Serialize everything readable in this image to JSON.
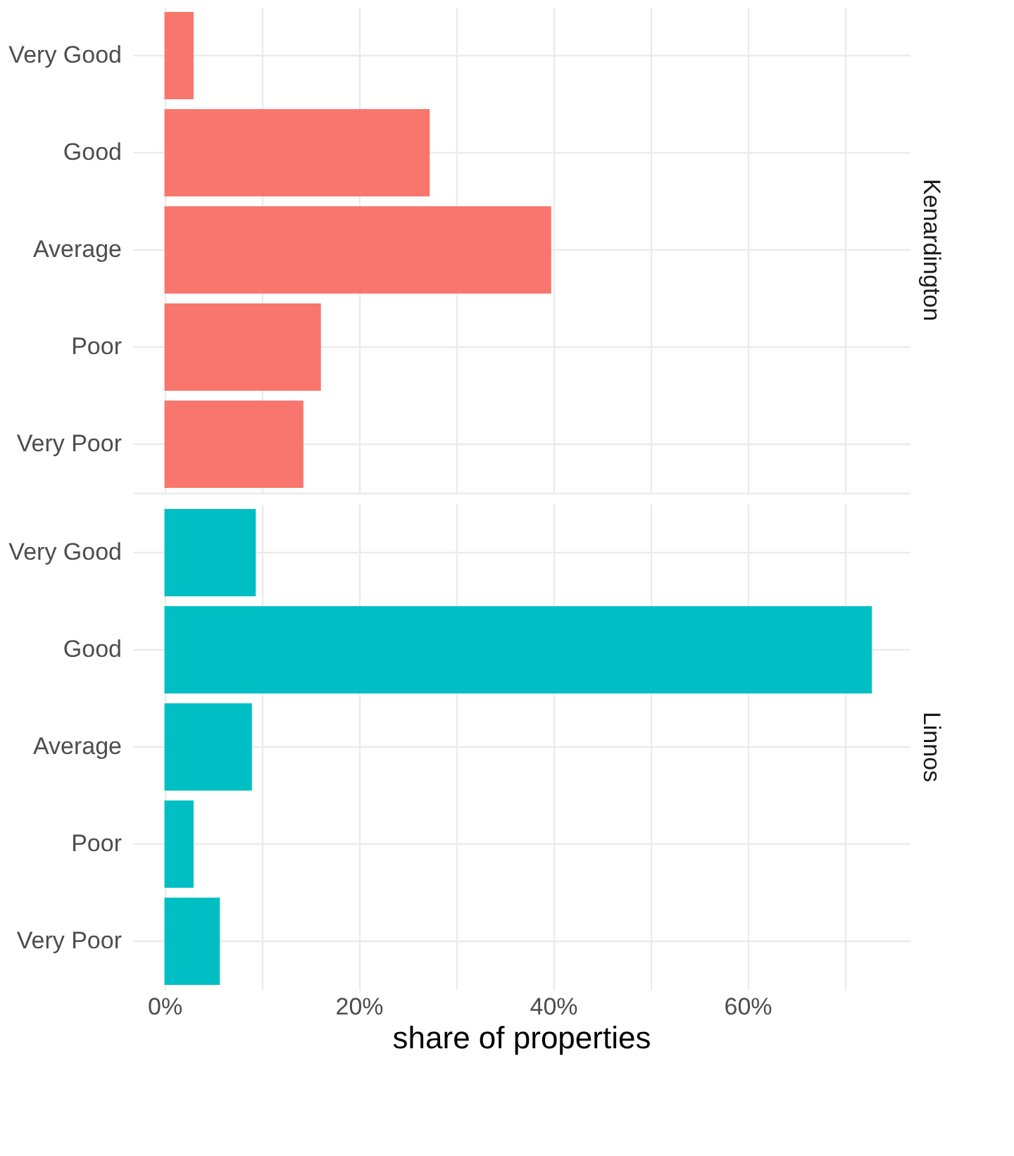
{
  "chart_data": [
    {
      "type": "bar",
      "orientation": "horizontal",
      "title": "Kenardington",
      "categories": [
        "Very Good",
        "Good",
        "Average",
        "Poor",
        "Very Poor"
      ],
      "series": [
        {
          "color": "#f8766d",
          "values": [
            3.0,
            27.3,
            39.8,
            16.1,
            14.3
          ]
        }
      ],
      "xlim": [
        -3.3,
        76.7
      ],
      "xticks": [
        0,
        10,
        20,
        30,
        40,
        50,
        60,
        70
      ],
      "grid": true,
      "tick_labels": "y"
    },
    {
      "type": "bar",
      "orientation": "horizontal",
      "title": "Linnos",
      "xlabel": "share of properties",
      "categories": [
        "Very Good",
        "Good",
        "Average",
        "Poor",
        "Very Poor"
      ],
      "series": [
        {
          "color": "#00bfc4",
          "values": [
            9.4,
            72.8,
            9.0,
            3.0,
            5.7
          ]
        }
      ],
      "xlim": [
        -3.3,
        76.7
      ],
      "xticks": [
        {
          "value": 0,
          "label": "0%"
        },
        {
          "value": 10,
          "label": null
        },
        {
          "value": 20,
          "label": "20%"
        },
        {
          "value": 30,
          "label": null
        },
        {
          "value": 40,
          "label": "40%"
        },
        {
          "value": 50,
          "label": null
        },
        {
          "value": 60,
          "label": "60%"
        },
        {
          "value": 70,
          "label": null
        }
      ],
      "grid": true
    }
  ]
}
